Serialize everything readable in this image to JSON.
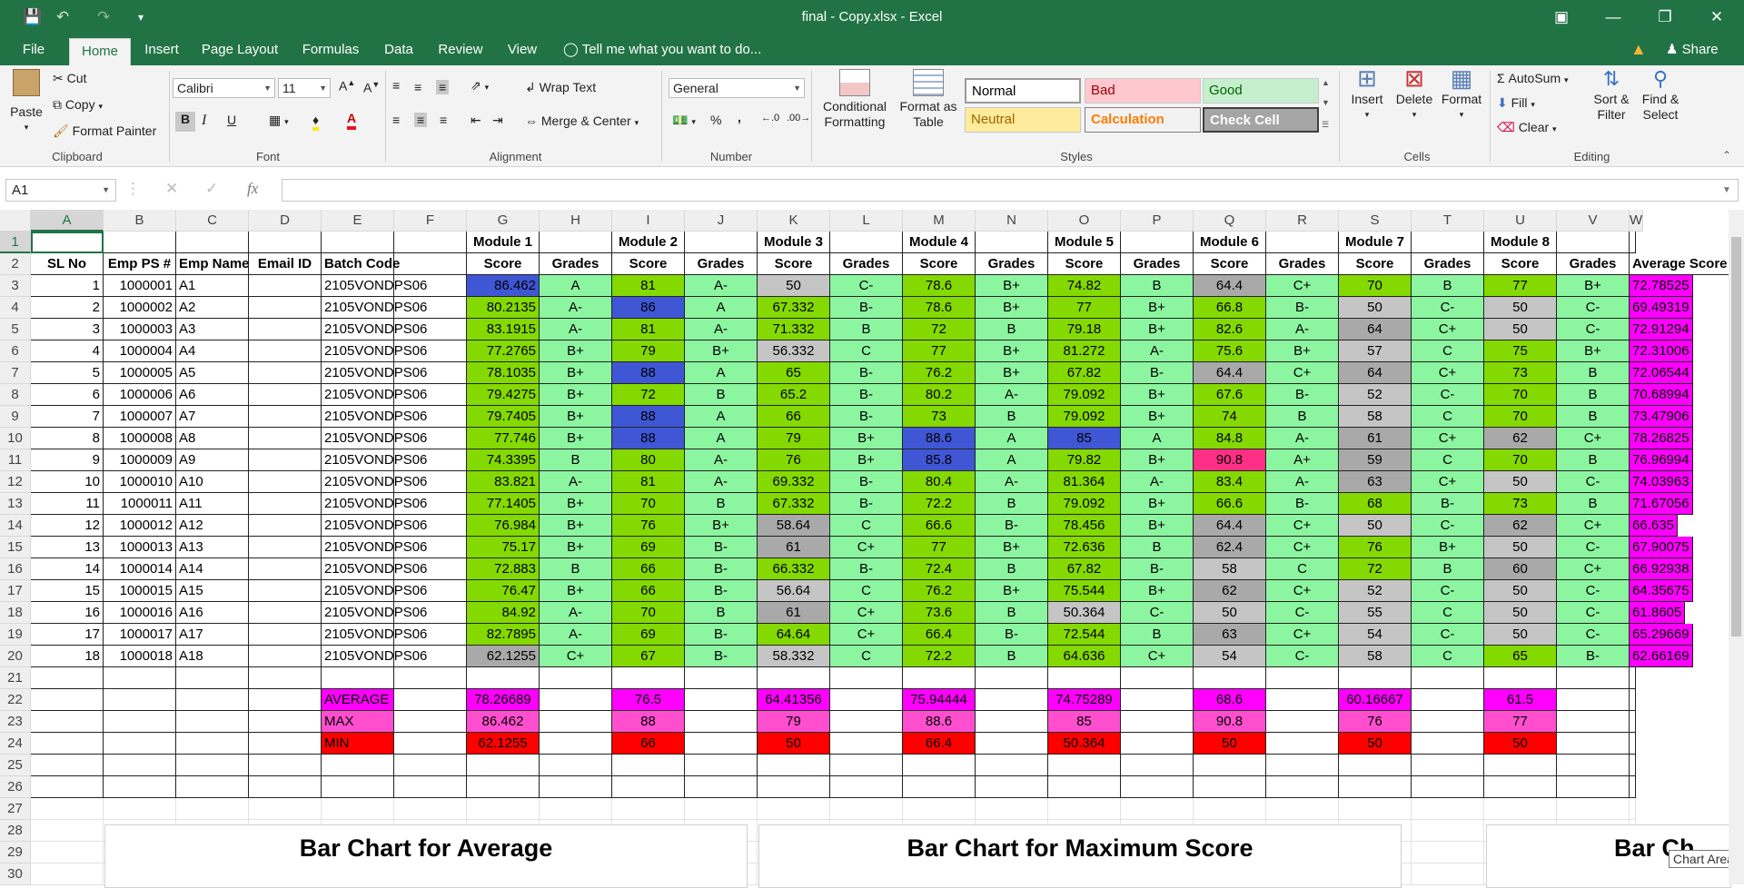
{
  "window": {
    "title": "final - Copy.xlsx - Excel",
    "help_icon": "ribbon-display-icon"
  },
  "tabs": [
    "File",
    "Home",
    "Insert",
    "Page Layout",
    "Formulas",
    "Data",
    "Review",
    "View"
  ],
  "tell_me": "Tell me what you want to do...",
  "share": "Share",
  "clipboard": {
    "paste": "Paste",
    "cut": "Cut",
    "copy": "Copy",
    "format_painter": "Format Painter",
    "label": "Clipboard"
  },
  "font": {
    "name": "Calibri",
    "size": "11",
    "label": "Font",
    "bold": "B",
    "italic": "I",
    "underline": "U"
  },
  "alignment": {
    "wrap": "Wrap Text",
    "merge": "Merge & Center",
    "label": "Alignment"
  },
  "number": {
    "format": "General",
    "label": "Number",
    "percent": "%",
    "comma": ","
  },
  "styles": {
    "conditional": "Conditional\nFormatting",
    "format_table": "Format as\nTable",
    "label": "Styles",
    "cells": [
      {
        "name": "Normal",
        "bg": "#ffffff",
        "fg": "#000000"
      },
      {
        "name": "Bad",
        "bg": "#ffc7ce",
        "fg": "#9c0006"
      },
      {
        "name": "Good",
        "bg": "#c6efce",
        "fg": "#006100"
      },
      {
        "name": "Neutral",
        "bg": "#ffeb9c",
        "fg": "#9c6500"
      },
      {
        "name": "Calculation",
        "bg": "#f2f2f2",
        "fg": "#fa7d00"
      },
      {
        "name": "Check Cell",
        "bg": "#a5a5a5",
        "fg": "#ffffff"
      }
    ]
  },
  "cells_group": {
    "insert": "Insert",
    "delete": "Delete",
    "format": "Format",
    "label": "Cells"
  },
  "editing": {
    "autosum": "AutoSum",
    "fill": "Fill",
    "clear": "Clear",
    "sort": "Sort &\nFilter",
    "find": "Find &\nSelect",
    "label": "Editing"
  },
  "formula_bar": {
    "name_box": "A1",
    "value": ""
  },
  "columns": [
    "A",
    "B",
    "C",
    "D",
    "E",
    "F",
    "G",
    "H",
    "I",
    "J",
    "K",
    "L",
    "M",
    "N",
    "O",
    "P",
    "Q",
    "R",
    "S",
    "T",
    "U",
    "V",
    "W"
  ],
  "rows": [
    "1",
    "2",
    "3",
    "4",
    "5",
    "6",
    "7",
    "8",
    "9",
    "10",
    "11",
    "12",
    "13",
    "14",
    "15",
    "16",
    "17",
    "18",
    "19",
    "20",
    "21",
    "22",
    "23",
    "24",
    "25",
    "26",
    "27",
    "28",
    "29",
    "30"
  ],
  "row1": {
    "G": "Module 1",
    "I": "Module 2",
    "K": "Module 3",
    "M": "Module 4",
    "O": "Module 5",
    "Q": "Module 6",
    "S": "Module 7",
    "U": "Module 8"
  },
  "row2": [
    "SL No",
    "Emp PS #",
    "Emp Name",
    "Email ID",
    "Batch Code",
    "",
    "Score",
    "Grades",
    "Score",
    "Grades",
    "Score",
    "Grades",
    "Score",
    "Grades",
    "Score",
    "Grades",
    "Score",
    "Grades",
    "Score",
    "Grades",
    "Score",
    "Grades",
    "Average Score"
  ],
  "data": [
    [
      "1",
      "1000001",
      "A1",
      "",
      "2105VONDPS06",
      "",
      "86.462",
      "A",
      "81",
      "A-",
      "50",
      "C-",
      "78.6",
      "B+",
      "74.82",
      "B",
      "64.4",
      "C+",
      "70",
      "B",
      "77",
      "B+",
      "72.78525"
    ],
    [
      "2",
      "1000002",
      "A2",
      "",
      "2105VONDPS06",
      "",
      "80.2135",
      "A-",
      "86",
      "A",
      "67.332",
      "B-",
      "78.6",
      "B+",
      "77",
      "B+",
      "66.8",
      "B-",
      "50",
      "C-",
      "50",
      "C-",
      "69.49319"
    ],
    [
      "3",
      "1000003",
      "A3",
      "",
      "2105VONDPS06",
      "",
      "83.1915",
      "A-",
      "81",
      "A-",
      "71.332",
      "B",
      "72",
      "B",
      "79.18",
      "B+",
      "82.6",
      "A-",
      "64",
      "C+",
      "50",
      "C-",
      "72.91294"
    ],
    [
      "4",
      "1000004",
      "A4",
      "",
      "2105VONDPS06",
      "",
      "77.2765",
      "B+",
      "79",
      "B+",
      "56.332",
      "C",
      "77",
      "B+",
      "81.272",
      "A-",
      "75.6",
      "B+",
      "57",
      "C",
      "75",
      "B+",
      "72.31006"
    ],
    [
      "5",
      "1000005",
      "A5",
      "",
      "2105VONDPS06",
      "",
      "78.1035",
      "B+",
      "88",
      "A",
      "65",
      "B-",
      "76.2",
      "B+",
      "67.82",
      "B-",
      "64.4",
      "C+",
      "64",
      "C+",
      "73",
      "B",
      "72.06544"
    ],
    [
      "6",
      "1000006",
      "A6",
      "",
      "2105VONDPS06",
      "",
      "79.4275",
      "B+",
      "72",
      "B",
      "65.2",
      "B-",
      "80.2",
      "A-",
      "79.092",
      "B+",
      "67.6",
      "B-",
      "52",
      "C-",
      "70",
      "B",
      "70.68994"
    ],
    [
      "7",
      "1000007",
      "A7",
      "",
      "2105VONDPS06",
      "",
      "79.7405",
      "B+",
      "88",
      "A",
      "66",
      "B-",
      "73",
      "B",
      "79.092",
      "B+",
      "74",
      "B",
      "58",
      "C",
      "70",
      "B",
      "73.47906"
    ],
    [
      "8",
      "1000008",
      "A8",
      "",
      "2105VONDPS06",
      "",
      "77.746",
      "B+",
      "88",
      "A",
      "79",
      "B+",
      "88.6",
      "A",
      "85",
      "A",
      "84.8",
      "A-",
      "61",
      "C+",
      "62",
      "C+",
      "78.26825"
    ],
    [
      "9",
      "1000009",
      "A9",
      "",
      "2105VONDPS06",
      "",
      "74.3395",
      "B",
      "80",
      "A-",
      "76",
      "B+",
      "85.8",
      "A",
      "79.82",
      "B+",
      "90.8",
      "A+",
      "59",
      "C",
      "70",
      "B",
      "76.96994"
    ],
    [
      "10",
      "1000010",
      "A10",
      "",
      "2105VONDPS06",
      "",
      "83.821",
      "A-",
      "81",
      "A-",
      "69.332",
      "B-",
      "80.4",
      "A-",
      "81.364",
      "A-",
      "83.4",
      "A-",
      "63",
      "C+",
      "50",
      "C-",
      "74.03963"
    ],
    [
      "11",
      "1000011",
      "A11",
      "",
      "2105VONDPS06",
      "",
      "77.1405",
      "B+",
      "70",
      "B",
      "67.332",
      "B-",
      "72.2",
      "B",
      "79.092",
      "B+",
      "66.6",
      "B-",
      "68",
      "B-",
      "73",
      "B",
      "71.67056"
    ],
    [
      "12",
      "1000012",
      "A12",
      "",
      "2105VONDPS06",
      "",
      "76.984",
      "B+",
      "76",
      "B+",
      "58.64",
      "C",
      "66.6",
      "B-",
      "78.456",
      "B+",
      "64.4",
      "C+",
      "50",
      "C-",
      "62",
      "C+",
      "66.635"
    ],
    [
      "13",
      "1000013",
      "A13",
      "",
      "2105VONDPS06",
      "",
      "75.17",
      "B+",
      "69",
      "B-",
      "61",
      "C+",
      "77",
      "B+",
      "72.636",
      "B",
      "62.4",
      "C+",
      "76",
      "B+",
      "50",
      "C-",
      "67.90075"
    ],
    [
      "14",
      "1000014",
      "A14",
      "",
      "2105VONDPS06",
      "",
      "72.883",
      "B",
      "66",
      "B-",
      "66.332",
      "B-",
      "72.4",
      "B",
      "67.82",
      "B-",
      "58",
      "C",
      "72",
      "B",
      "60",
      "C+",
      "66.92938"
    ],
    [
      "15",
      "1000015",
      "A15",
      "",
      "2105VONDPS06",
      "",
      "76.47",
      "B+",
      "66",
      "B-",
      "56.64",
      "C",
      "76.2",
      "B+",
      "75.544",
      "B+",
      "62",
      "C+",
      "52",
      "C-",
      "50",
      "C-",
      "64.35675"
    ],
    [
      "16",
      "1000016",
      "A16",
      "",
      "2105VONDPS06",
      "",
      "84.92",
      "A-",
      "70",
      "B",
      "61",
      "C+",
      "73.6",
      "B",
      "50.364",
      "C-",
      "50",
      "C-",
      "55",
      "C",
      "50",
      "C-",
      "61.8605"
    ],
    [
      "17",
      "1000017",
      "A17",
      "",
      "2105VONDPS06",
      "",
      "82.7895",
      "A-",
      "69",
      "B-",
      "64.64",
      "C+",
      "66.4",
      "B-",
      "72.544",
      "B",
      "63",
      "C+",
      "54",
      "C-",
      "50",
      "C-",
      "65.29669"
    ],
    [
      "18",
      "1000018",
      "A18",
      "",
      "2105VONDPS06",
      "",
      "62.1255",
      "C+",
      "67",
      "B-",
      "58.332",
      "C",
      "72.2",
      "B",
      "64.636",
      "C+",
      "54",
      "C-",
      "58",
      "C",
      "65",
      "B-",
      "62.66169"
    ]
  ],
  "stats": [
    {
      "label": "AVERAGE",
      "values": [
        "78.26689",
        "76.5",
        "64.41356",
        "75.94444",
        "74.75289",
        "68.6",
        "60.16667",
        "61.5"
      ]
    },
    {
      "label": "MAX",
      "values": [
        "86.462",
        "88",
        "79",
        "88.6",
        "85",
        "90.8",
        "76",
        "77"
      ]
    },
    {
      "label": "MIN",
      "values": [
        "62.1255",
        "66",
        "50",
        "66.4",
        "50.364",
        "50",
        "50",
        "50"
      ]
    }
  ],
  "charts": [
    "Bar Chart for Average",
    "Bar Chart for Maximum Score",
    "Bar Ch"
  ],
  "tooltip": "Chart Area",
  "colors": {
    "green": "#84d900",
    "light_green": "#8cf5a0",
    "blue": "#3f57d5",
    "gray": "#a9a9a9",
    "light_gray": "#c5c5c5",
    "magenta": "#ff00ff",
    "pink": "#ff4fcf",
    "red": "#ff0000",
    "hot_pink": "#ff2f86",
    "header_green": "#217346"
  }
}
